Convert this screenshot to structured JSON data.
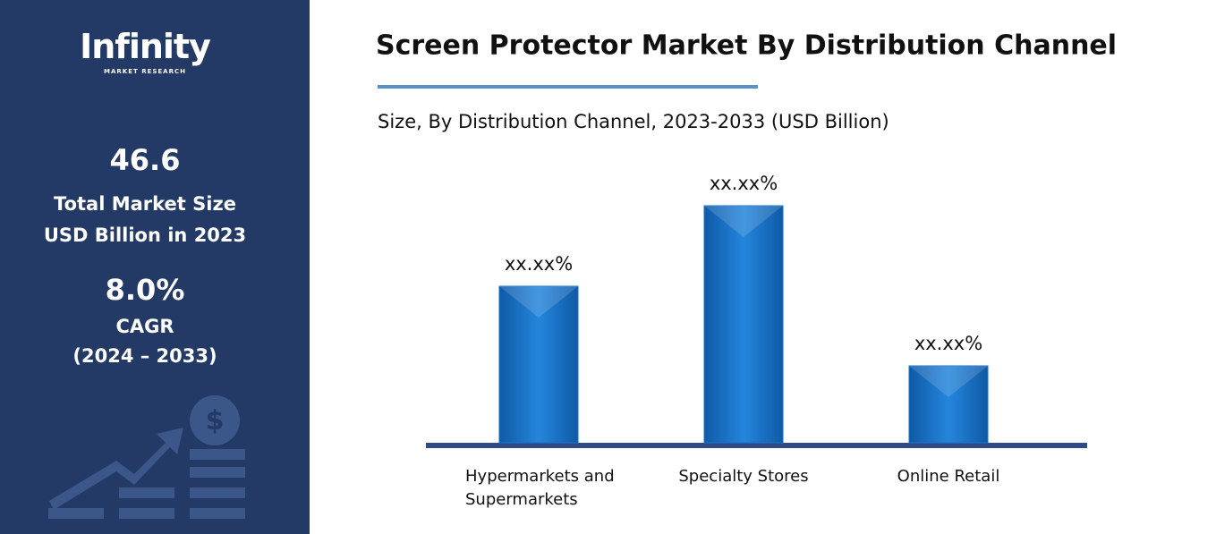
{
  "sidebar": {
    "logo": "Infinity",
    "logo_sub": "MARKET RESEARCH",
    "market_size": "46.6",
    "market_size_label": "Total Market Size",
    "market_size_unit": "USD Billion in 2023",
    "cagr": "8.0%",
    "cagr_label": "CAGR",
    "cagr_period": "(2024 – 2033)"
  },
  "chart_data": {
    "type": "bar",
    "title": "Screen Protector Market By Distribution Channel",
    "subtitle": "Size, By Distribution Channel, 2023-2033 (USD Billion)",
    "categories": [
      "Hypermarkets and Supermarkets",
      "Specialty Stores",
      "Online Retail"
    ],
    "values": [
      17.5,
      26.5,
      8.6
    ],
    "value_labels": [
      "xx.xx%",
      "xx.xx%",
      "xx.xx%"
    ],
    "color": "#1a73c8"
  }
}
